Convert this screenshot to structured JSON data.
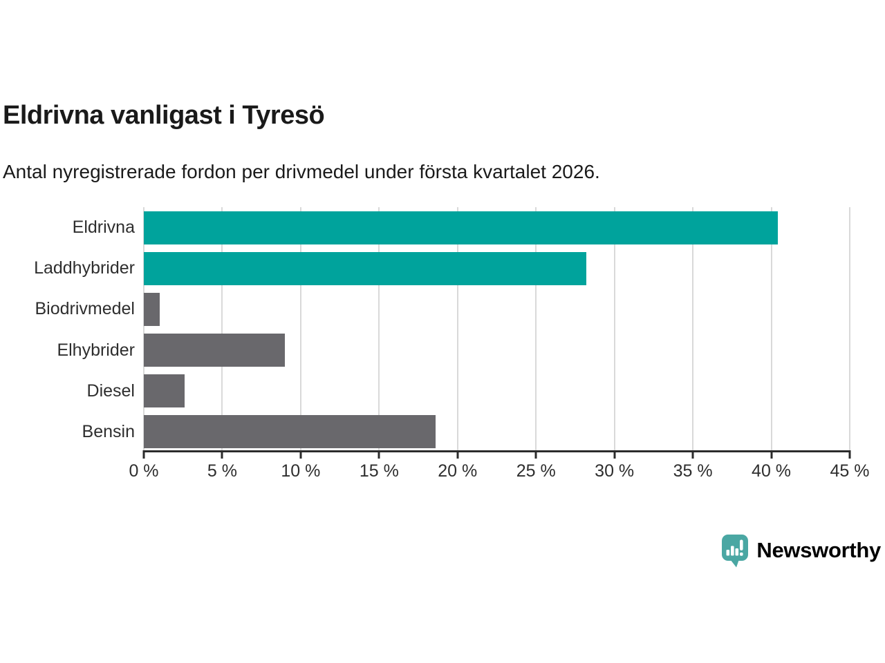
{
  "header": {
    "title": "Eldrivna vanligast i Tyresö",
    "subtitle": "Antal nyregistrerade fordon per drivmedel under första kvartalet 2026."
  },
  "chart_data": {
    "type": "bar",
    "orientation": "horizontal",
    "title": "Eldrivna vanligast i Tyresö",
    "subtitle": "Antal nyregistrerade fordon per drivmedel under första kvartalet 2026.",
    "categories": [
      "Eldrivna",
      "Laddhybrider",
      "Biodrivmedel",
      "Elhybrider",
      "Diesel",
      "Bensin"
    ],
    "values": [
      40.4,
      28.2,
      1.0,
      9.0,
      2.6,
      18.6
    ],
    "value_unit": "%",
    "xlabel": "",
    "ylabel": "",
    "xlim": [
      0,
      45
    ],
    "xticks": [
      0,
      5,
      10,
      15,
      20,
      25,
      30,
      35,
      40,
      45
    ],
    "xtick_labels": [
      "0 %",
      "5 %",
      "10 %",
      "15 %",
      "20 %",
      "25 %",
      "30 %",
      "35 %",
      "40 %",
      "45 %"
    ],
    "bar_colors": [
      "#00a39c",
      "#00a39c",
      "#69686c",
      "#69686c",
      "#69686c",
      "#69686c"
    ],
    "grid": true,
    "legend": false
  },
  "branding": {
    "logo_text": "Newsworthy",
    "logo_icon": "newsworthy-speech-bubble-bar-chart-icon",
    "logo_color": "#4aa7a3"
  },
  "colors": {
    "accent_teal": "#00a39c",
    "bar_gray": "#69686c",
    "gridline": "#d9d9d9",
    "axis": "#2b2b2b",
    "text_dark": "#1a1a1a",
    "text_label": "#2e2e2e"
  }
}
